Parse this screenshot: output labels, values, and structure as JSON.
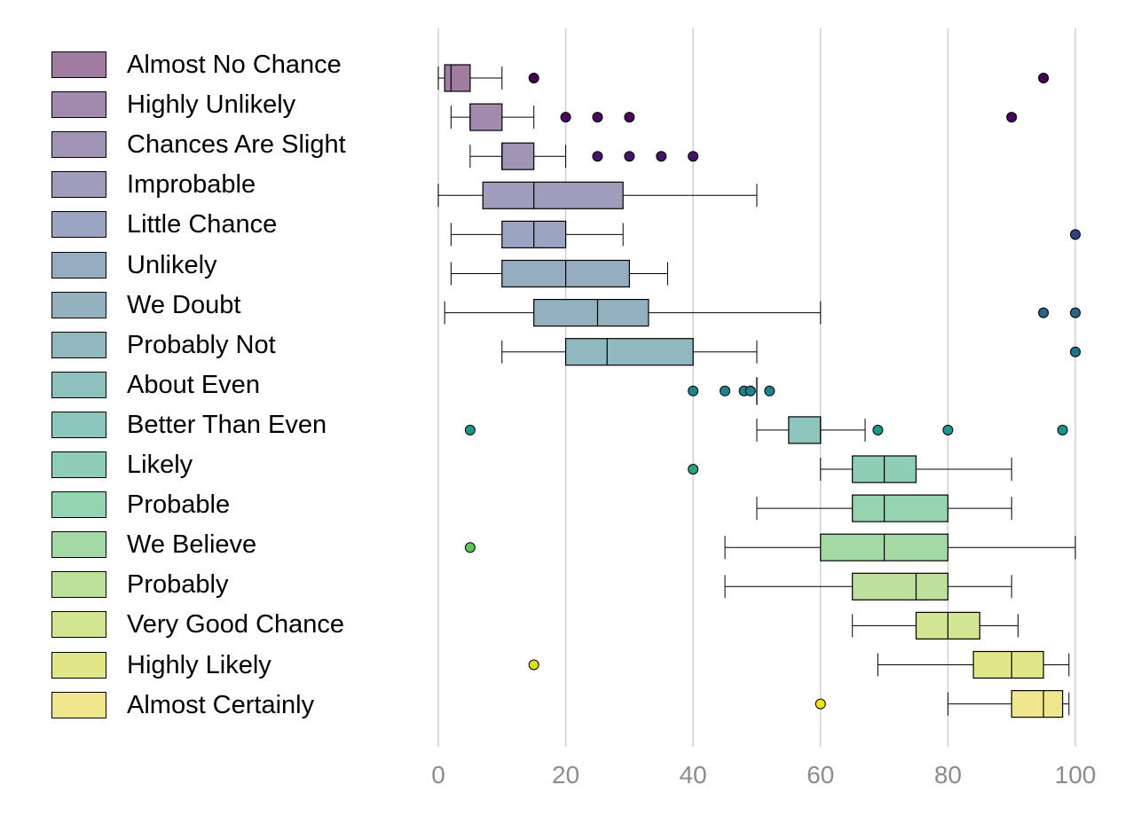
{
  "chart_data": {
    "type": "boxplot",
    "title": "",
    "xlabel": "",
    "ylabel": "",
    "xlim": [
      0,
      100
    ],
    "xticks": [
      0,
      20,
      40,
      60,
      80,
      100
    ],
    "grid": "vertical",
    "legend_position": "left",
    "series": [
      {
        "name": "Almost No Chance",
        "color": "#a07ca0",
        "outlier_color": "#440154",
        "whisker_low": 0,
        "q1": 1,
        "median": 2,
        "q3": 5,
        "whisker_high": 10,
        "outliers": [
          15,
          95
        ]
      },
      {
        "name": "Highly Unlikely",
        "color": "#a18aae",
        "outlier_color": "#46085c",
        "whisker_low": 2,
        "q1": 5,
        "median": 5,
        "q3": 10,
        "whisker_high": 15,
        "outliers": [
          20,
          25,
          30,
          90
        ]
      },
      {
        "name": "Chances Are Slight",
        "color": "#a194b6",
        "outlier_color": "#471365",
        "whisker_low": 5,
        "q1": 10,
        "median": 10,
        "q3": 15,
        "whisker_high": 20,
        "outliers": [
          25,
          30,
          35,
          40
        ]
      },
      {
        "name": "Improbable",
        "color": "#9f9cbc",
        "outlier_color": "#3b2a78",
        "whisker_low": 0,
        "q1": 7,
        "median": 15,
        "q3": 29,
        "whisker_high": 50,
        "outliers": []
      },
      {
        "name": "Little Chance",
        "color": "#9ba4c0",
        "outlier_color": "#34407e",
        "whisker_low": 2,
        "q1": 10,
        "median": 15,
        "q3": 20,
        "whisker_high": 29,
        "outliers": [
          100
        ]
      },
      {
        "name": "Unlikely",
        "color": "#96acc0",
        "outlier_color": "#2d5384",
        "whisker_low": 2,
        "q1": 10,
        "median": 20,
        "q3": 30,
        "whisker_high": 36,
        "outliers": []
      },
      {
        "name": "We Doubt",
        "color": "#93b1bf",
        "outlier_color": "#2a6488",
        "whisker_low": 1,
        "q1": 15,
        "median": 25,
        "q3": 33,
        "whisker_high": 60,
        "outliers": [
          95,
          100
        ]
      },
      {
        "name": "Probably Not",
        "color": "#91b8bf",
        "outlier_color": "#237189",
        "whisker_low": 10,
        "q1": 20,
        "median": 26.5,
        "q3": 40,
        "whisker_high": 50,
        "outliers": [
          100
        ]
      },
      {
        "name": "About Even",
        "color": "#8fc0bd",
        "outlier_color": "#1f838d",
        "whisker_low": 50,
        "q1": 50,
        "median": 50,
        "q3": 50,
        "whisker_high": 50,
        "outliers": [
          40,
          45,
          48,
          49,
          52
        ]
      },
      {
        "name": "Better Than Even",
        "color": "#8dc6bd",
        "outlier_color": "#1e958a",
        "whisker_low": 50,
        "q1": 55,
        "median": 60,
        "q3": 60,
        "whisker_high": 67,
        "outliers": [
          5,
          69,
          80,
          98
        ]
      },
      {
        "name": "Likely",
        "color": "#8fcdb7",
        "outlier_color": "#25a584",
        "whisker_low": 60,
        "q1": 65,
        "median": 70,
        "q3": 75,
        "whisker_high": 90,
        "outliers": [
          40
        ]
      },
      {
        "name": "Probable",
        "color": "#96d3b0",
        "outlier_color": "#3ab372",
        "whisker_low": 50,
        "q1": 65,
        "median": 70,
        "q3": 80,
        "whisker_high": 90,
        "outliers": []
      },
      {
        "name": "We Believe",
        "color": "#a4d9a6",
        "outlier_color": "#5ec45c",
        "whisker_low": 45,
        "q1": 60,
        "median": 70,
        "q3": 80,
        "whisker_high": 100,
        "outliers": [
          5
        ]
      },
      {
        "name": "Probably",
        "color": "#bde09c",
        "outlier_color": "#8ccf45",
        "whisker_low": 45,
        "q1": 65,
        "median": 75,
        "q3": 80,
        "whisker_high": 90,
        "outliers": []
      },
      {
        "name": "Very Good Chance",
        "color": "#d2e592",
        "outlier_color": "#b4d82c",
        "whisker_low": 65,
        "q1": 75,
        "median": 80,
        "q3": 85,
        "whisker_high": 91,
        "outliers": []
      },
      {
        "name": "Highly Likely",
        "color": "#e1e689",
        "outlier_color": "#d5df1e",
        "whisker_low": 69,
        "q1": 84,
        "median": 90,
        "q3": 95,
        "whisker_high": 99,
        "outliers": [
          15
        ]
      },
      {
        "name": "Almost Certainly",
        "color": "#f0e68d",
        "outlier_color": "#f2e01a",
        "whisker_low": 80,
        "q1": 90,
        "median": 95,
        "q3": 98,
        "whisker_high": 99,
        "outliers": [
          60
        ]
      }
    ]
  }
}
